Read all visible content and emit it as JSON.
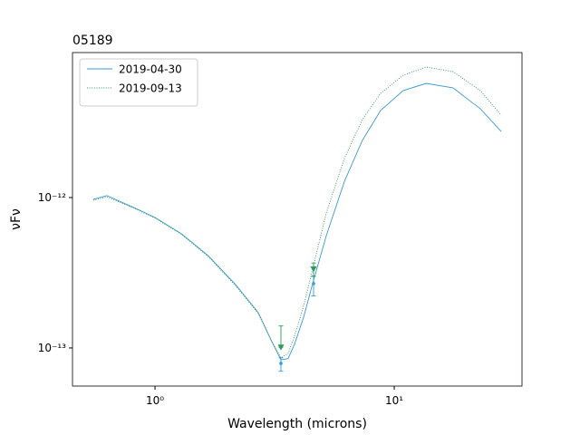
{
  "chart_data": {
    "type": "line",
    "title": "05189",
    "xlabel": "Wavelength (microns)",
    "ylabel": "νFν",
    "xscale": "log",
    "yscale": "log",
    "xlim": [
      0.452,
      34.2
    ],
    "ylim": [
      5.58e-14,
      9.2e-12
    ],
    "xticks": [
      {
        "value": 1,
        "label": "10⁰"
      },
      {
        "value": 10,
        "label": "10¹"
      }
    ],
    "yticks": [
      {
        "value": 1e-13,
        "label": "10⁻¹³"
      },
      {
        "value": 1e-12,
        "label": "10⁻¹²"
      }
    ],
    "grid": false,
    "legend": "upper left",
    "x": [
      0.552,
      0.63,
      0.83,
      1.0,
      1.29,
      1.67,
      2.17,
      2.7,
      3.08,
      3.36,
      3.6,
      3.83,
      4.18,
      4.56,
      5.2,
      6.19,
      7.36,
      8.77,
      10.9,
      13.6,
      17.6,
      22.9,
      28
    ],
    "series": [
      {
        "name": "2019-04-30",
        "color": "#3a9ad6",
        "linestyle": "solid",
        "marker": "circle",
        "values": [
          9.73e-13,
          1.03e-12,
          8.47e-13,
          7.37e-13,
          5.74e-13,
          4.1e-13,
          2.64e-13,
          1.72e-13,
          1.1e-13,
          8.35e-14,
          8.5e-14,
          1.057e-13,
          1.6e-13,
          2.68e-13,
          5.58e-13,
          1.28e-12,
          2.4e-12,
          3.79e-12,
          5.14e-12,
          5.74e-12,
          5.36e-12,
          3.89e-12,
          2.75e-12
        ],
        "points": {
          "x": [
            3.36,
            4.6
          ],
          "y": [
            7.9e-14,
            2.68e-13
          ],
          "yerr": [
            [
              9e-15,
              7e-15
            ],
            [
              4.6e-14,
              3.2e-14
            ]
          ]
        }
      },
      {
        "name": "2019-09-13",
        "color": "#2e9a5c",
        "linestyle": "dotted",
        "marker": "triangle-down",
        "values": [
          9.6e-13,
          1.01e-12,
          8.4e-13,
          7.3e-13,
          5.7e-13,
          4.05e-13,
          2.6e-13,
          1.7e-13,
          1.1e-13,
          8.6e-14,
          9.2e-14,
          1.2e-13,
          1.9e-13,
          3.34e-13,
          7.9e-13,
          1.82e-12,
          3.3e-12,
          4.93e-12,
          6.5e-12,
          7.37e-12,
          6.87e-12,
          5.14e-12,
          3.53e-12
        ],
        "points": {
          "x": [
            3.36,
            4.6
          ],
          "y": [
            1.01e-13,
            3.34e-13
          ],
          "yerr": [
            [
              0,
              3.9e-14
            ],
            [
              3.4e-14,
              3.3e-14
            ]
          ]
        }
      }
    ]
  }
}
